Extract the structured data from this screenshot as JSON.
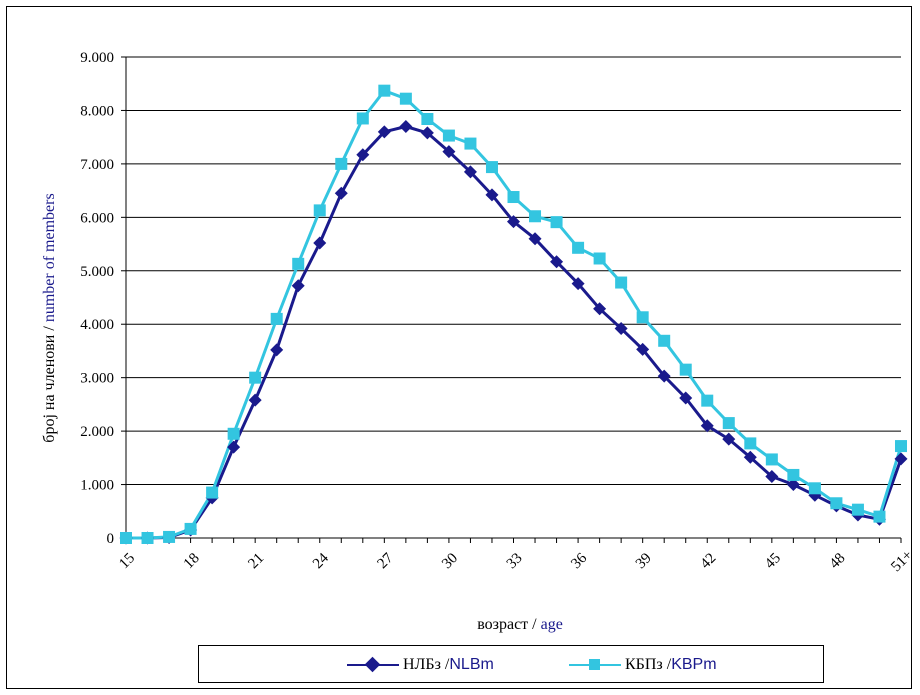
{
  "chart_data": {
    "type": "line",
    "x": [
      "15",
      "16",
      "17",
      "18",
      "19",
      "20",
      "21",
      "22",
      "23",
      "24",
      "25",
      "26",
      "27",
      "28",
      "29",
      "30",
      "31",
      "32",
      "33",
      "34",
      "35",
      "36",
      "37",
      "38",
      "39",
      "40",
      "41",
      "42",
      "43",
      "44",
      "45",
      "46",
      "47",
      "48",
      "49",
      "50",
      "51+"
    ],
    "x_tick_labels": [
      "15",
      "18",
      "21",
      "24",
      "27",
      "30",
      "33",
      "36",
      "39",
      "42",
      "45",
      "48",
      "51+"
    ],
    "y_tick_labels": [
      "0",
      "1.000",
      "2.000",
      "3.000",
      "4.000",
      "5.000",
      "6.000",
      "7.000",
      "8.000",
      "9.000"
    ],
    "ylim": [
      0,
      9000
    ],
    "y_ticks": [
      0,
      1000,
      2000,
      3000,
      4000,
      5000,
      6000,
      7000,
      8000,
      9000
    ],
    "grid": "horizontal",
    "legend_position": "bottom",
    "ylabel": {
      "mk": "број на членови / ",
      "en": "number of members"
    },
    "xlabel": {
      "mk": "возраст / ",
      "en": "age"
    },
    "series": [
      {
        "name": "НЛБз  / NLBm",
        "name_mk": "НЛБз  / ",
        "name_en": "NLBm",
        "color": "#1a1a8c",
        "marker": "diamond",
        "values": [
          0,
          0,
          10,
          150,
          750,
          1700,
          2580,
          3520,
          4720,
          5520,
          6450,
          7170,
          7600,
          7700,
          7580,
          7230,
          6850,
          6420,
          5920,
          5600,
          5170,
          4760,
          4290,
          3920,
          3530,
          3030,
          2620,
          2100,
          1850,
          1510,
          1150,
          1000,
          800,
          600,
          430,
          350,
          1480
        ]
      },
      {
        "name": "КБПз  / KBPm",
        "name_mk": "КБПз  / ",
        "name_en": "KBPm",
        "color": "#33c5e0",
        "marker": "square",
        "values": [
          0,
          0,
          20,
          170,
          850,
          1950,
          3000,
          4100,
          5130,
          6130,
          7000,
          7850,
          8370,
          8220,
          7840,
          7530,
          7380,
          6940,
          6380,
          6020,
          5910,
          5430,
          5230,
          4780,
          4130,
          3690,
          3150,
          2570,
          2150,
          1770,
          1470,
          1180,
          930,
          650,
          530,
          400,
          1720
        ]
      }
    ]
  }
}
